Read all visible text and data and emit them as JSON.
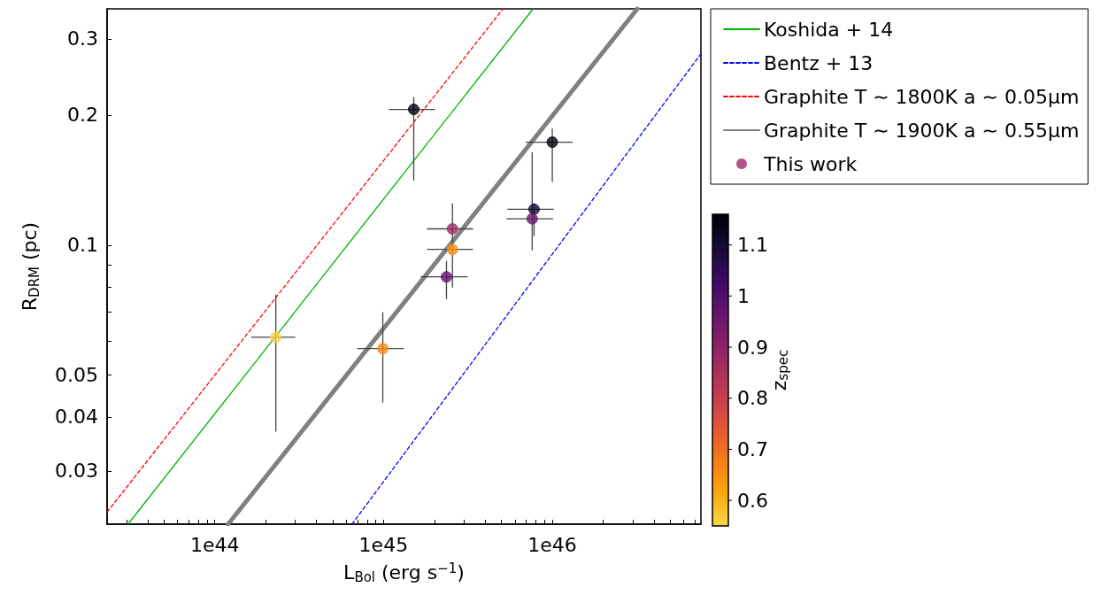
{
  "chart_data": {
    "type": "scatter",
    "xlabel": "L$_{Bol}$ (erg s$^{−1}$)",
    "ylabel": "R$_{DRM}$ (pc)",
    "clabel": "z$_{spec}$",
    "log": "xy",
    "grid": false,
    "legend": "top right",
    "xlim": [
      2.3e+43,
      7.6e+46
    ],
    "ylim": [
      0.0226,
      0.352
    ],
    "xticks": [
      {
        "value": 3e+43,
        "label": null
      },
      {
        "value": 4e+43,
        "label": null
      },
      {
        "value": 5e+43,
        "label": null
      },
      {
        "value": 6e+43,
        "label": null
      },
      {
        "value": 7e+43,
        "label": null
      },
      {
        "value": 8e+43,
        "label": null
      },
      {
        "value": 9e+43,
        "label": null
      },
      {
        "value": 1e+44,
        "label": "1e44"
      },
      {
        "value": 2e+44,
        "label": null
      },
      {
        "value": 3e+44,
        "label": null
      },
      {
        "value": 4e+44,
        "label": null
      },
      {
        "value": 5e+44,
        "label": null
      },
      {
        "value": 6e+44,
        "label": null
      },
      {
        "value": 7e+44,
        "label": null
      },
      {
        "value": 8e+44,
        "label": null
      },
      {
        "value": 9e+44,
        "label": null
      },
      {
        "value": 1e+45,
        "label": "1e45"
      },
      {
        "value": 2e+45,
        "label": null
      },
      {
        "value": 3e+45,
        "label": null
      },
      {
        "value": 4e+45,
        "label": null
      },
      {
        "value": 5e+45,
        "label": null
      },
      {
        "value": 6e+45,
        "label": null
      },
      {
        "value": 7e+45,
        "label": null
      },
      {
        "value": 8e+45,
        "label": null
      },
      {
        "value": 9e+45,
        "label": null
      },
      {
        "value": 1e+46,
        "label": "1e46"
      },
      {
        "value": 2e+46,
        "label": null
      },
      {
        "value": 3e+46,
        "label": null
      },
      {
        "value": 4e+46,
        "label": null
      },
      {
        "value": 5e+46,
        "label": null
      },
      {
        "value": 6e+46,
        "label": null
      },
      {
        "value": 7e+46,
        "label": null
      }
    ],
    "yticks": [
      0.03,
      0.04,
      0.05,
      {
        "value": 0.06,
        "label": null
      },
      {
        "value": 0.07,
        "label": null
      },
      {
        "value": 0.08,
        "label": null
      },
      {
        "value": 0.09,
        "label": null
      },
      0.1,
      0.2,
      0.3
    ],
    "clim": [
      0.55,
      1.16
    ],
    "cticks": [
      0.6,
      0.7,
      0.8,
      0.9,
      1.0,
      1.1
    ],
    "series": [
      {
        "type": "line",
        "name": "Koshida + 14",
        "color": "#00b300",
        "line_style": "solid",
        "marker": "none",
        "x": [
          3.06e+43,
          7.7e+45
        ],
        "values": [
          0.0226,
          0.352
        ]
      },
      {
        "type": "line",
        "name": "Bentz + 13",
        "color": "#0000ff",
        "line_style": "dashed",
        "marker": "none",
        "x": [
          6.5e+44,
          7.6e+46
        ],
        "values": [
          0.0226,
          0.277
        ]
      },
      {
        "type": "line",
        "name": "Graphite T ∼ 1800K a ∼ 0.05μm",
        "color": "#ff0000",
        "line_style": "dashed",
        "marker": "none",
        "x": [
          2.3e+43,
          5.1e+45
        ],
        "values": [
          0.0241,
          0.352
        ]
      },
      {
        "type": "line",
        "name": "Graphite T ∼ 1900K a ∼ 0.55μm",
        "color": "#808080",
        "line_style": "solid",
        "marker": "none",
        "x": [
          1.2e+44,
          3.19e+46
        ],
        "values": [
          0.0226,
          0.352
        ]
      },
      {
        "name": "This work",
        "marker": "circle",
        "cvalues": [
          1.15,
          1.15,
          1.1,
          0.95,
          0.87,
          0.66,
          0.97,
          0.56,
          0.66
        ],
        "colors": [
          "#03020c",
          "#03020c",
          "#140a34",
          "#6e186e",
          "#9f2b63",
          "#f88b0f",
          "#62146d",
          "#f6d746",
          "#f88b0f"
        ],
        "x": [
          1.51e+45,
          1e+46,
          7.8e+45,
          7.6e+45,
          2.56e+45,
          2.56e+45,
          2.36e+45,
          2.3e+44,
          9.9e+44
        ],
        "values": [
          0.206,
          0.173,
          0.121,
          0.115,
          0.109,
          0.0977,
          0.0844,
          0.0612,
          0.0576
        ],
        "errors": [
          [
            0.141,
            0.22
          ],
          [
            0.14,
            0.186
          ],
          [
            0.105,
            0.125
          ],
          [
            0.0972,
            0.164
          ],
          null,
          [
            0.0797,
            0.125
          ],
          [
            0.075,
            0.0919
          ],
          [
            0.037,
            0.0768
          ],
          [
            0.0432,
            0.0699
          ]
        ],
        "xerrors": [
          [
            1.075e+45,
            2.02e+45
          ],
          [
            6.96e+45,
            1.32e+46
          ],
          [
            5.43e+45,
            1.02e+46
          ],
          [
            5.35e+45,
            1.01e+46
          ],
          [
            1.81e+45,
            3.39e+45
          ],
          [
            1.81e+45,
            3.39e+45
          ],
          [
            1.66e+45,
            3.15e+45
          ],
          [
            1.64e+44,
            3e+44
          ],
          [
            6.97e+44,
            1.32e+45
          ]
        ]
      }
    ]
  }
}
